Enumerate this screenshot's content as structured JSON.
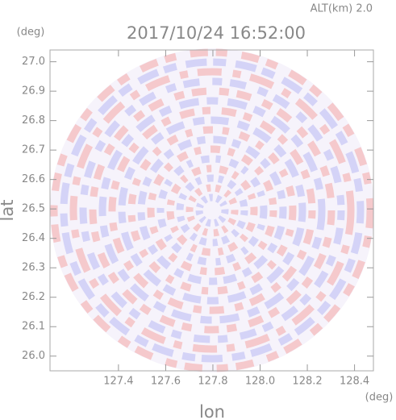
{
  "chart_data": {
    "type": "radar-ppi",
    "title": "2017/10/24 16:52:00",
    "altitude_label": "ALT(km) 2.0",
    "y_unit": "(deg)",
    "x_unit": "(deg)",
    "ylabel": "lat",
    "xlabel": "lon",
    "xlim": [
      127.11,
      128.48
    ],
    "ylim": [
      25.95,
      27.04
    ],
    "xticks": [
      127.4,
      127.6,
      127.8,
      {
        "value": 128,
        "label": "128.0"
      },
      128.2,
      128.4
    ],
    "yticks": [
      {
        "value": 26,
        "label": "26.0"
      },
      26.1,
      26.2,
      26.3,
      26.4,
      26.5,
      26.6,
      26.7,
      26.8,
      26.9,
      {
        "value": 27,
        "label": "27.0"
      }
    ]
  }
}
